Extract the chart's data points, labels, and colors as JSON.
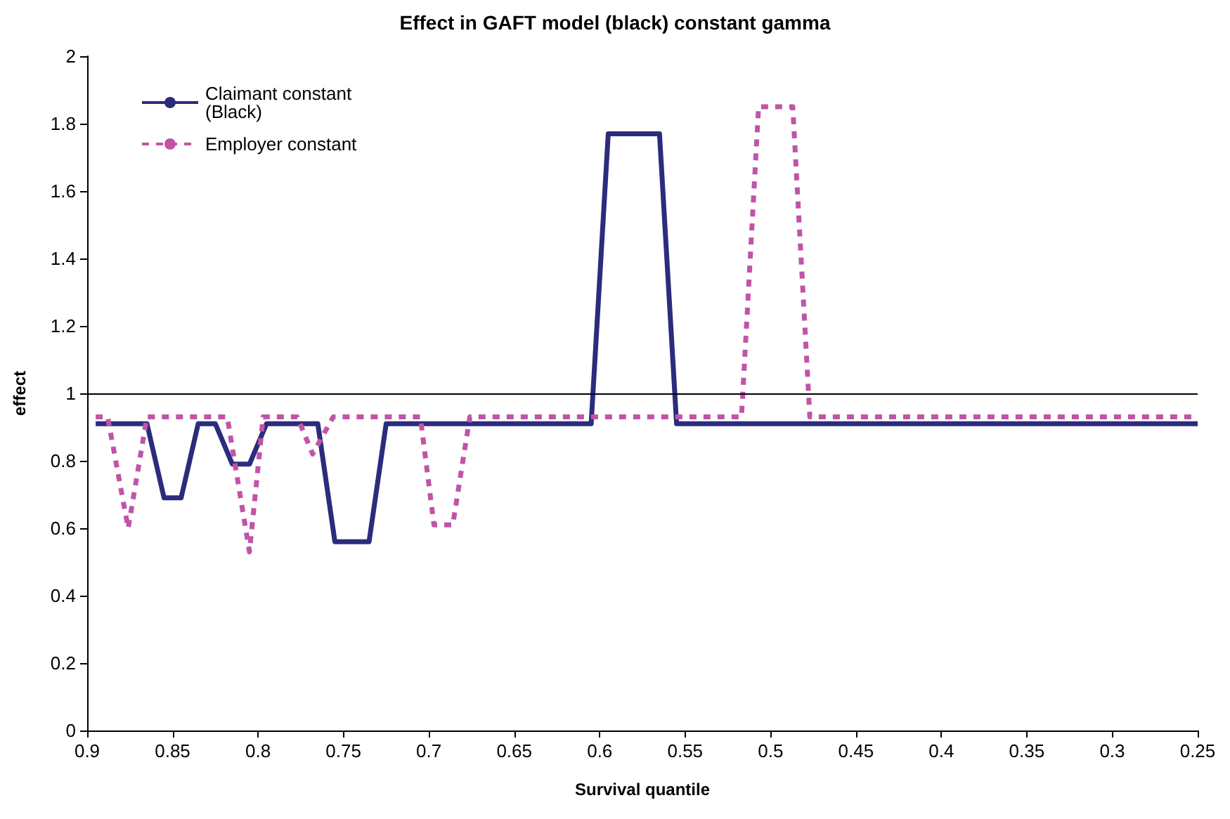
{
  "chart_data": {
    "type": "line",
    "title": "Effect in GAFT model (black) constant gamma",
    "xlabel": "Survival quantile",
    "ylabel": "effect",
    "series": [
      {
        "name": "Claimant constant (Black)",
        "color": "#2b2c7c",
        "line_style": "solid",
        "x": [
          0.895,
          0.865,
          0.855,
          0.845,
          0.835,
          0.825,
          0.815,
          0.805,
          0.795,
          0.765,
          0.755,
          0.735,
          0.725,
          0.605,
          0.595,
          0.565,
          0.555,
          0.25
        ],
        "values": [
          0.91,
          0.91,
          0.69,
          0.69,
          0.91,
          0.91,
          0.79,
          0.79,
          0.91,
          0.91,
          0.56,
          0.56,
          0.91,
          0.91,
          1.77,
          1.77,
          0.91,
          0.91
        ]
      },
      {
        "name": "Employer constant",
        "color": "#c054a8",
        "line_style": "dashed",
        "x": [
          0.895,
          0.888,
          0.876,
          0.865,
          0.818,
          0.805,
          0.797,
          0.777,
          0.768,
          0.756,
          0.705,
          0.697,
          0.686,
          0.676,
          0.517,
          0.507,
          0.487,
          0.477,
          0.25
        ],
        "values": [
          0.93,
          0.93,
          0.6,
          0.93,
          0.93,
          0.53,
          0.93,
          0.93,
          0.82,
          0.93,
          0.93,
          0.61,
          0.61,
          0.93,
          0.93,
          1.85,
          1.85,
          0.93,
          0.93
        ]
      }
    ],
    "xlim": [
      0.9,
      0.25
    ],
    "xticks": [
      0.9,
      0.85,
      0.8,
      0.75,
      0.7,
      0.65,
      0.6,
      0.55,
      0.5,
      0.45,
      0.4,
      0.35,
      0.3,
      0.25
    ],
    "ylim": [
      0,
      2
    ],
    "yticks": [
      0,
      0.2,
      0.4,
      0.6,
      0.8,
      1,
      1.2,
      1.4,
      1.6,
      1.8,
      2
    ],
    "ref_lines": [
      {
        "axis": "y",
        "value": 1,
        "color": "#000000"
      }
    ],
    "grid": false,
    "legend": "top left",
    "marker": "none"
  }
}
